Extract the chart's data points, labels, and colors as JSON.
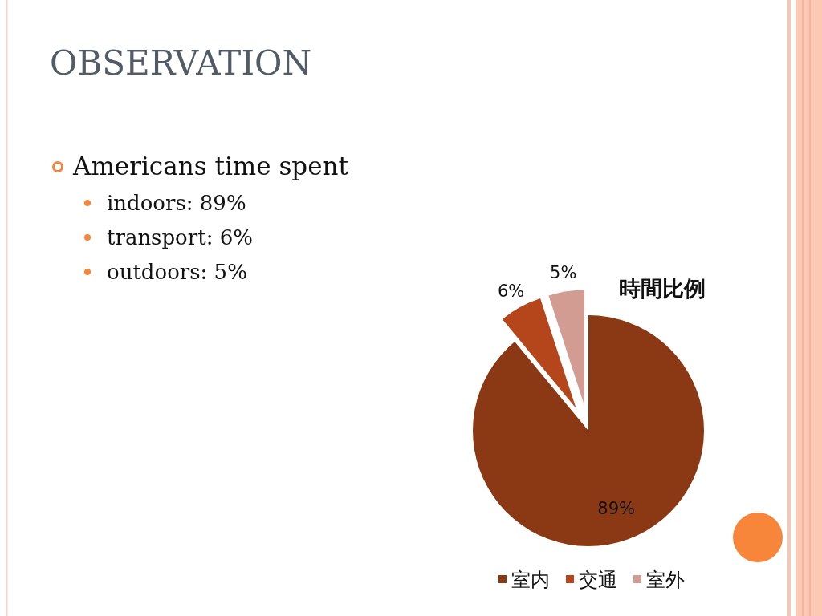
{
  "chart_data": {
    "type": "pie",
    "title": "時間比例",
    "categories": [
      "室内",
      "交通",
      "室外"
    ],
    "values": [
      89,
      6,
      5
    ],
    "colors": [
      "#8b3914",
      "#b5461b",
      "#d29c92"
    ],
    "value_labels": [
      "89%",
      "6%",
      "5%"
    ],
    "legend": "bottom",
    "annotations": [
      "OBSERVATION",
      "Americans time spent",
      "indoors: 89%",
      "transport: 6%",
      "outdoors: 5%"
    ]
  }
}
